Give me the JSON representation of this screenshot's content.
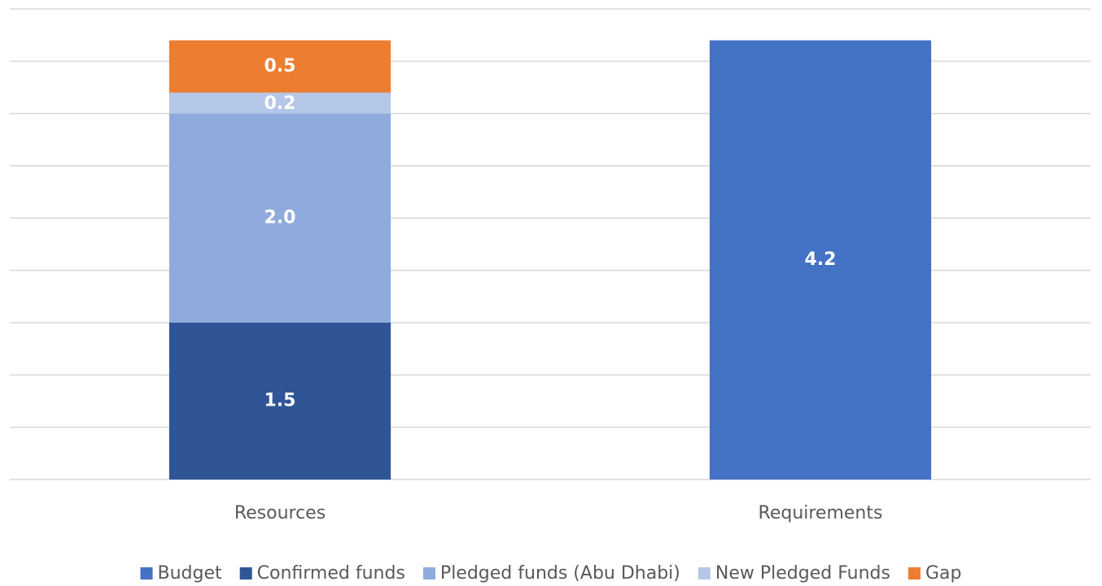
{
  "chart_data": {
    "type": "stacked_bar",
    "categories": [
      "Resources",
      "Requirements"
    ],
    "series": [
      {
        "name": "Budget",
        "color": "#4472c4",
        "values": [
          null,
          4.2
        ],
        "value_labels": [
          null,
          "4.2"
        ]
      },
      {
        "name": "Confirmed funds",
        "color": "#2f5597",
        "values": [
          1.5,
          null
        ],
        "value_labels": [
          "1.5",
          null
        ]
      },
      {
        "name": "Pledged funds (Abu Dhabi)",
        "color": "#8faadc",
        "values": [
          2.0,
          null
        ],
        "value_labels": [
          "2.0",
          null
        ]
      },
      {
        "name": "New Pledged Funds",
        "color": "#b4c7e7",
        "values": [
          0.2,
          null
        ],
        "value_labels": [
          "0.2",
          null
        ]
      },
      {
        "name": "Gap",
        "color": "#ed7d31",
        "values": [
          0.5,
          null
        ],
        "value_labels": [
          "0.5",
          null
        ]
      }
    ],
    "ylim": [
      0,
      4.5
    ],
    "yticks": [
      0,
      0.5,
      1,
      1.5,
      2,
      2.5,
      3,
      3.5,
      4,
      4.5
    ],
    "grid": true,
    "legend": "bottom"
  }
}
